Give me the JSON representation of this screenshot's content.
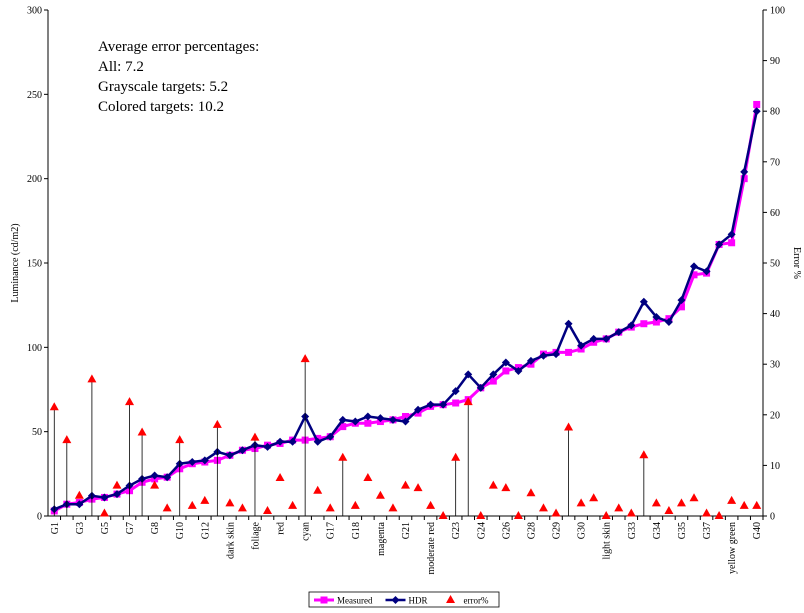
{
  "chart_data": {
    "type": "line",
    "annotations": [
      "Average error percentages:",
      "All: 7.2",
      "Grayscale targets: 5.2",
      "Colored targets: 10.2"
    ],
    "y_label": "Luminance (cd/m2)",
    "y2_label": "Error %",
    "categories": [
      "G1",
      null,
      "G3",
      null,
      "G5",
      null,
      "G7",
      null,
      "G8",
      null,
      "G10",
      null,
      "G12",
      null,
      "dark skin",
      null,
      "foliage",
      null,
      "red",
      null,
      "cyan",
      null,
      "G17",
      null,
      "G18",
      null,
      "magenta",
      null,
      "G21",
      null,
      "moderate red",
      null,
      "G23",
      null,
      "G24",
      null,
      "G26",
      null,
      "G28",
      null,
      "G29",
      null,
      "G30",
      null,
      "light skin",
      null,
      "G33",
      null,
      "G34",
      null,
      "G35",
      null,
      "G37",
      null,
      "yellow green",
      null,
      "G40"
    ],
    "ylim": [
      0,
      300
    ],
    "yticks": [
      0,
      50,
      100,
      150,
      200,
      250,
      300
    ],
    "y2lim": [
      0,
      100
    ],
    "y2ticks": [
      0,
      10,
      20,
      30,
      40,
      50,
      60,
      70,
      80,
      90,
      100
    ],
    "legend": "bottom",
    "series": [
      {
        "name": "Measured",
        "color": "#ff00ff",
        "marker": "square",
        "values": [
          3,
          7,
          8,
          10,
          11,
          13,
          15,
          20,
          22,
          23,
          28,
          31,
          32,
          33,
          36,
          39,
          40,
          42,
          43,
          45,
          45,
          46,
          47,
          53,
          55,
          55,
          56,
          57,
          59,
          61,
          65,
          66,
          67,
          69,
          76,
          80,
          86,
          88,
          90,
          96,
          97,
          97,
          99,
          103,
          105,
          109,
          112,
          114,
          115,
          117,
          124,
          143,
          144,
          161,
          162,
          200,
          244
        ]
      },
      {
        "name": "HDR",
        "color": "#000080",
        "marker": "diamond",
        "values": [
          4,
          7,
          7,
          12,
          11,
          13,
          18,
          22,
          24,
          23,
          31,
          32,
          33,
          38,
          36,
          39,
          42,
          41,
          44,
          44,
          59,
          44,
          47,
          57,
          56,
          59,
          58,
          57,
          56,
          63,
          66,
          66,
          74,
          84,
          76,
          84,
          91,
          86,
          92,
          95,
          96,
          114,
          101,
          105,
          105,
          109,
          113,
          127,
          118,
          115,
          128,
          148,
          145,
          161,
          167,
          204,
          240
        ]
      },
      {
        "name": "error%",
        "color": "#ff0000",
        "marker": "triangle",
        "axis": "y2",
        "values": [
          21.5,
          15,
          4,
          27,
          0.5,
          6,
          22.5,
          16.5,
          6,
          1.5,
          15,
          2,
          3,
          18,
          2.5,
          1.5,
          15.5,
          1,
          7.5,
          2,
          31,
          5,
          1.5,
          11.5,
          2,
          7.5,
          4,
          1.5,
          6,
          5.5,
          2,
          0,
          11.5,
          22.5,
          0,
          6,
          5.5,
          0,
          4.5,
          1.5,
          0.5,
          17.5,
          2.5,
          3.5,
          0,
          1.5,
          0.5,
          12,
          2.5,
          1,
          2.5,
          3.5,
          0.5,
          0,
          3,
          2,
          2
        ]
      }
    ]
  }
}
